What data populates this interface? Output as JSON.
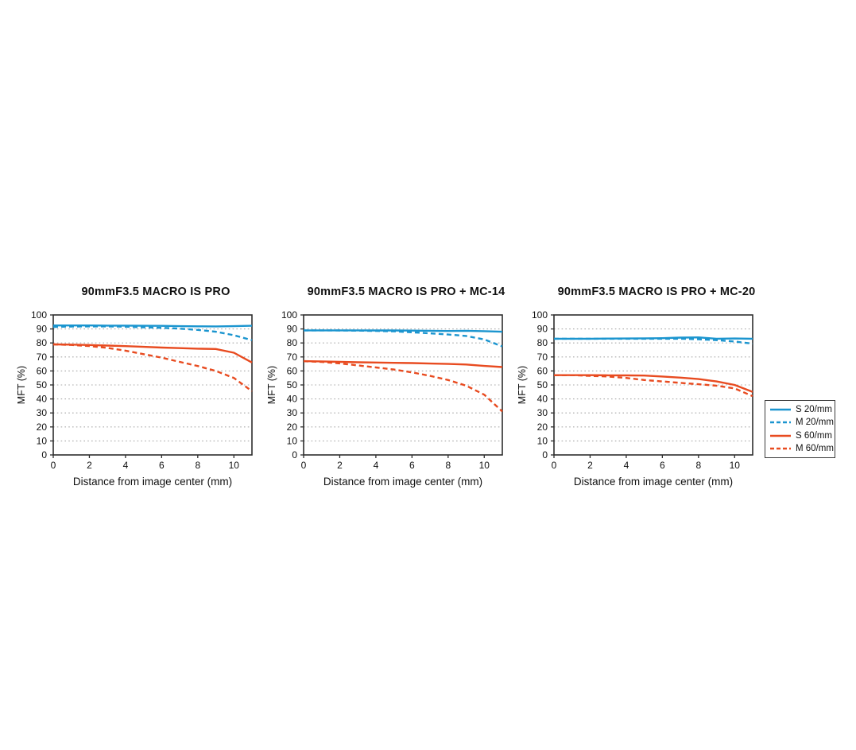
{
  "page": {
    "background": "#ffffff"
  },
  "colors": {
    "blue": "#1b95cf",
    "red": "#e84b20",
    "grid": "#a9a9a9",
    "axis": "#2d2d2d",
    "text": "#111111"
  },
  "legend": {
    "items": [
      {
        "label": "S 20/mm",
        "color": "#1b95cf",
        "style": "solid"
      },
      {
        "label": "M 20/mm",
        "color": "#1b95cf",
        "style": "dashed"
      },
      {
        "label": "S 60/mm",
        "color": "#e84b20",
        "style": "solid"
      },
      {
        "label": "M 60/mm",
        "color": "#e84b20",
        "style": "dashed"
      }
    ]
  },
  "chart_data": [
    {
      "type": "line",
      "title": "90mmF3.5 MACRO IS PRO",
      "xlabel": "Distance from image center (mm)",
      "ylabel": "MFT (%)",
      "xlim": [
        0,
        11
      ],
      "ylim": [
        0,
        100
      ],
      "xticks": [
        0,
        2,
        4,
        6,
        8,
        10
      ],
      "yticks": [
        0,
        10,
        20,
        30,
        40,
        50,
        60,
        70,
        80,
        90,
        100
      ],
      "grid": "dotted-horizontal",
      "legend_position": "outside-right",
      "x": [
        0,
        1,
        2,
        3,
        4,
        5,
        6,
        7,
        8,
        9,
        10,
        11
      ],
      "series": [
        {
          "name": "S 20/mm",
          "color": "#1b95cf",
          "style": "solid",
          "values": [
            92.5,
            92.5,
            92.5,
            92.4,
            92.4,
            92.3,
            92.2,
            92.0,
            91.9,
            91.8,
            92.0,
            92.3
          ]
        },
        {
          "name": "M 20/mm",
          "color": "#1b95cf",
          "style": "dashed",
          "values": [
            91.5,
            91.7,
            91.8,
            91.8,
            91.6,
            91.2,
            90.8,
            90.2,
            89.3,
            88.0,
            85.5,
            82.0
          ]
        },
        {
          "name": "S 60/mm",
          "color": "#e84b20",
          "style": "solid",
          "values": [
            79.0,
            78.8,
            78.5,
            78.1,
            77.7,
            77.2,
            76.7,
            76.3,
            75.9,
            75.7,
            73.0,
            66.0
          ]
        },
        {
          "name": "M 60/mm",
          "color": "#e84b20",
          "style": "dashed",
          "values": [
            79.0,
            78.6,
            77.8,
            76.5,
            74.5,
            72.0,
            69.5,
            66.5,
            63.5,
            60.0,
            55.0,
            45.5
          ]
        }
      ]
    },
    {
      "type": "line",
      "title": "90mmF3.5 MACRO IS PRO + MC-14",
      "xlabel": "Distance from image center (mm)",
      "ylabel": "MFT (%)",
      "xlim": [
        0,
        11
      ],
      "ylim": [
        0,
        100
      ],
      "xticks": [
        0,
        2,
        4,
        6,
        8,
        10
      ],
      "yticks": [
        0,
        10,
        20,
        30,
        40,
        50,
        60,
        70,
        80,
        90,
        100
      ],
      "grid": "dotted-horizontal",
      "legend_position": "outside-right",
      "x": [
        0,
        1,
        2,
        3,
        4,
        5,
        6,
        7,
        8,
        9,
        10,
        11
      ],
      "series": [
        {
          "name": "S 20/mm",
          "color": "#1b95cf",
          "style": "solid",
          "values": [
            89.0,
            89.0,
            89.0,
            89.0,
            88.9,
            88.9,
            88.8,
            88.7,
            88.5,
            88.7,
            88.4,
            88.0
          ]
        },
        {
          "name": "M 20/mm",
          "color": "#1b95cf",
          "style": "dashed",
          "values": [
            89.0,
            89.0,
            88.9,
            88.8,
            88.6,
            88.3,
            87.6,
            86.9,
            86.0,
            85.0,
            82.5,
            77.5
          ]
        },
        {
          "name": "S 60/mm",
          "color": "#e84b20",
          "style": "solid",
          "values": [
            67.0,
            66.8,
            66.5,
            66.2,
            66.0,
            65.8,
            65.6,
            65.3,
            65.0,
            64.6,
            63.6,
            62.8
          ]
        },
        {
          "name": "M 60/mm",
          "color": "#e84b20",
          "style": "dashed",
          "values": [
            67.0,
            66.4,
            65.4,
            64.0,
            62.5,
            61.0,
            59.0,
            56.5,
            53.5,
            49.5,
            43.0,
            31.0
          ]
        }
      ]
    },
    {
      "type": "line",
      "title": "90mmF3.5 MACRO IS PRO + MC-20",
      "xlabel": "Distance from image center (mm)",
      "ylabel": "MFT (%)",
      "xlim": [
        0,
        11
      ],
      "ylim": [
        0,
        100
      ],
      "xticks": [
        0,
        2,
        4,
        6,
        8,
        10
      ],
      "yticks": [
        0,
        10,
        20,
        30,
        40,
        50,
        60,
        70,
        80,
        90,
        100
      ],
      "grid": "dotted-horizontal",
      "legend_position": "outside-right",
      "x": [
        0,
        1,
        2,
        3,
        4,
        5,
        6,
        7,
        8,
        9,
        10,
        11
      ],
      "series": [
        {
          "name": "S 20/mm",
          "color": "#1b95cf",
          "style": "solid",
          "values": [
            83.0,
            83.0,
            83.0,
            83.1,
            83.2,
            83.3,
            83.4,
            83.8,
            84.0,
            83.0,
            83.2,
            83.0
          ]
        },
        {
          "name": "M 20/mm",
          "color": "#1b95cf",
          "style": "dashed",
          "values": [
            83.0,
            83.0,
            83.0,
            83.0,
            83.0,
            83.0,
            83.0,
            83.0,
            82.6,
            82.0,
            81.0,
            79.5
          ]
        },
        {
          "name": "S 60/mm",
          "color": "#e84b20",
          "style": "solid",
          "values": [
            57.0,
            57.0,
            57.0,
            56.9,
            56.8,
            56.7,
            56.0,
            55.2,
            54.2,
            52.5,
            50.0,
            45.0
          ]
        },
        {
          "name": "M 60/mm",
          "color": "#e84b20",
          "style": "dashed",
          "values": [
            57.0,
            57.0,
            56.5,
            56.0,
            55.0,
            53.5,
            52.5,
            51.5,
            50.5,
            49.5,
            47.5,
            42.0
          ]
        }
      ]
    }
  ]
}
